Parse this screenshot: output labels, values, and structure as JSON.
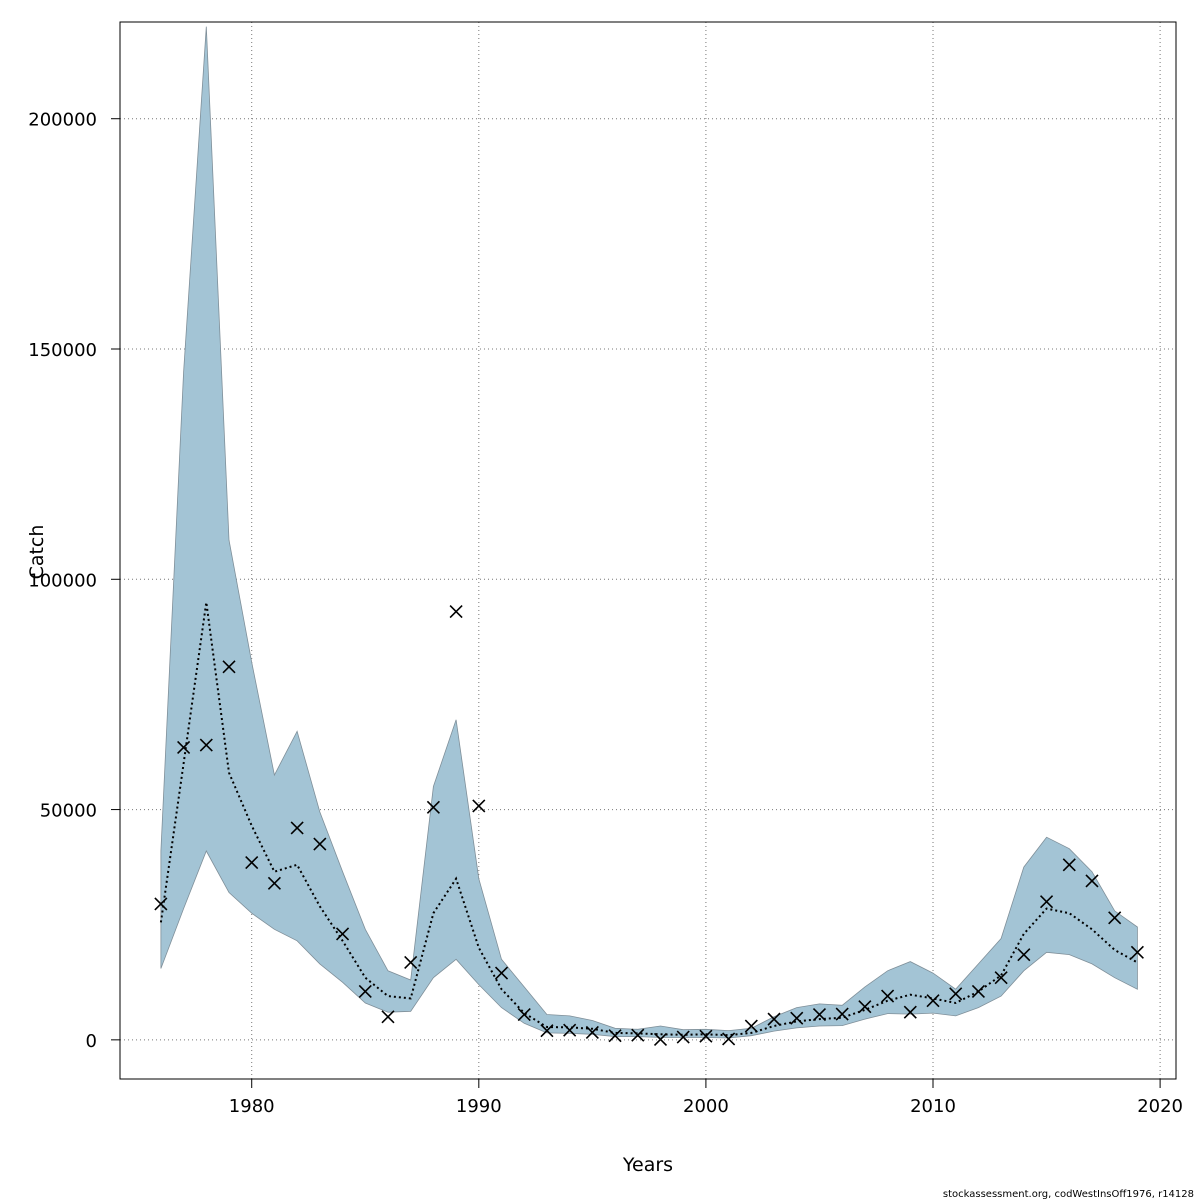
{
  "chart_data": {
    "type": "line",
    "xlabel": "Years",
    "ylabel": "Catch",
    "footer": "stockassessment.org, codWestInsOff1976, r14128",
    "xlim": [
      1974.2,
      2020.7
    ],
    "ylim": [
      -8500,
      221000
    ],
    "x_ticks": [
      1980,
      1990,
      2000,
      2010,
      2020
    ],
    "y_ticks": [
      0,
      50000,
      100000,
      150000,
      200000
    ],
    "grid": true,
    "colors": {
      "band": "#a3c4d5",
      "band_edge": "#7f8f99",
      "estimate": "#000000",
      "observed": "#000000",
      "grid": "#777777"
    },
    "series": [
      {
        "years": [
          1976,
          1977,
          1978,
          1979,
          1980,
          1981,
          1982,
          1983,
          1984,
          1985,
          1986,
          1987,
          1988,
          1989,
          1990,
          1991,
          1992,
          1993,
          1994,
          1995,
          1996,
          1997,
          1998,
          1999,
          2000,
          2001,
          2002,
          2003,
          2004,
          2005,
          2006,
          2007,
          2008,
          2009,
          2010,
          2011,
          2012,
          2013,
          2014,
          2015,
          2016,
          2017,
          2018,
          2019
        ],
        "estimate": [
          25500,
          60000,
          95000,
          58000,
          46500,
          36500,
          38000,
          29000,
          21500,
          13500,
          9500,
          9000,
          27500,
          35000,
          20000,
          11000,
          5800,
          2800,
          2700,
          2400,
          1500,
          1400,
          1200,
          1100,
          1200,
          1000,
          1500,
          3000,
          4000,
          4500,
          4800,
          6500,
          8500,
          9800,
          9000,
          8000,
          10500,
          14000,
          23000,
          28500,
          27500,
          24000,
          19500,
          16800
        ],
        "upper": [
          41000,
          145000,
          220000,
          108500,
          82000,
          57500,
          67000,
          49500,
          36500,
          24000,
          15000,
          13000,
          55000,
          69500,
          35000,
          17500,
          11500,
          5500,
          5200,
          4200,
          2500,
          2300,
          3000,
          2200,
          2300,
          2000,
          2500,
          5000,
          7000,
          7800,
          7500,
          11500,
          15000,
          17000,
          14500,
          11000,
          16500,
          22000,
          37500,
          44000,
          41500,
          36500,
          28000,
          24500
        ],
        "lower": [
          15500,
          28500,
          41000,
          32000,
          27500,
          24000,
          21500,
          16500,
          12500,
          8000,
          6000,
          6200,
          13500,
          17500,
          12000,
          7000,
          3600,
          1500,
          1400,
          1200,
          700,
          700,
          500,
          500,
          500,
          400,
          900,
          1900,
          2600,
          3000,
          3100,
          4500,
          5700,
          5600,
          5800,
          5200,
          7000,
          9500,
          15000,
          19000,
          18500,
          16500,
          13500,
          11000
        ],
        "observed": [
          29500,
          63500,
          64000,
          81000,
          38500,
          34000,
          46000,
          42500,
          23000,
          10500,
          5000,
          16800,
          50500,
          93000,
          50800,
          14500,
          5500,
          2000,
          2100,
          1600,
          900,
          1000,
          100,
          600,
          800,
          200,
          3000,
          4500,
          4700,
          5500,
          5600,
          7200,
          9500,
          6000,
          8500,
          10000,
          10500,
          13500,
          18500,
          30000,
          38000,
          34500,
          26500,
          19000
        ]
      }
    ]
  }
}
